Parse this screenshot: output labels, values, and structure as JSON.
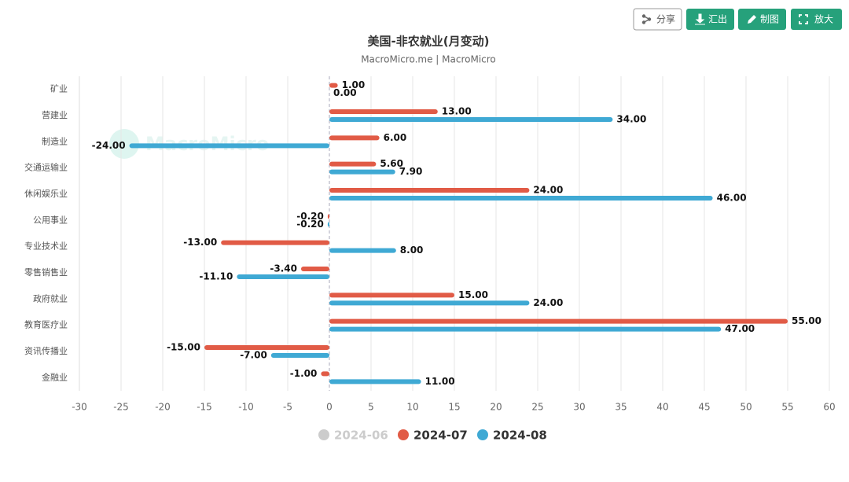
{
  "chart_data": {
    "type": "hbar",
    "title": "美国-非农就业(月变动)",
    "subtitle": "MacroMicro.me | MacroMicro",
    "watermark": "MacroMicro",
    "buttons": [
      "分享",
      "汇出",
      "制图",
      "放大"
    ],
    "categories": [
      "矿业",
      "营建业",
      "制造业",
      "交通运输业",
      "休闲娱乐业",
      "公用事业",
      "专业技术业",
      "零售销售业",
      "政府就业",
      "教育医疗业",
      "资讯传播业",
      "金融业"
    ],
    "series": [
      {
        "name": "2024-06",
        "color": "#cccccc",
        "hidden": true,
        "values": [
          null,
          null,
          null,
          null,
          null,
          null,
          null,
          null,
          null,
          null,
          null,
          null
        ]
      },
      {
        "name": "2024-07",
        "color": "#e15b46",
        "values": [
          1,
          13,
          6,
          5.6,
          24,
          -0.2,
          -13,
          -3.4,
          15,
          55,
          -15,
          -1
        ],
        "value_labels": [
          "1.00",
          "13.00",
          "6.00",
          "5.60",
          "24.00",
          "-0.20",
          "-13.00",
          "-3.40",
          "15.00",
          "55.00",
          "-15.00",
          "-1.00"
        ]
      },
      {
        "name": "2024-08",
        "color": "#3fa9d4",
        "values": [
          0,
          34,
          -24,
          7.9,
          46,
          -0.2,
          8,
          -11.1,
          24,
          47,
          -7,
          11
        ],
        "value_labels": [
          "0.00",
          "34.00",
          "-24.00",
          "7.90",
          "46.00",
          "-0.20",
          "8.00",
          "-11.10",
          "24.00",
          "47.00",
          "-7.00",
          "11.00"
        ]
      }
    ],
    "xlim": [
      -30,
      60
    ],
    "xticks": [
      -30,
      -25,
      -20,
      -15,
      -10,
      -5,
      0,
      5,
      10,
      15,
      20,
      25,
      30,
      35,
      40,
      45,
      50,
      55,
      60
    ],
    "grid": true
  }
}
